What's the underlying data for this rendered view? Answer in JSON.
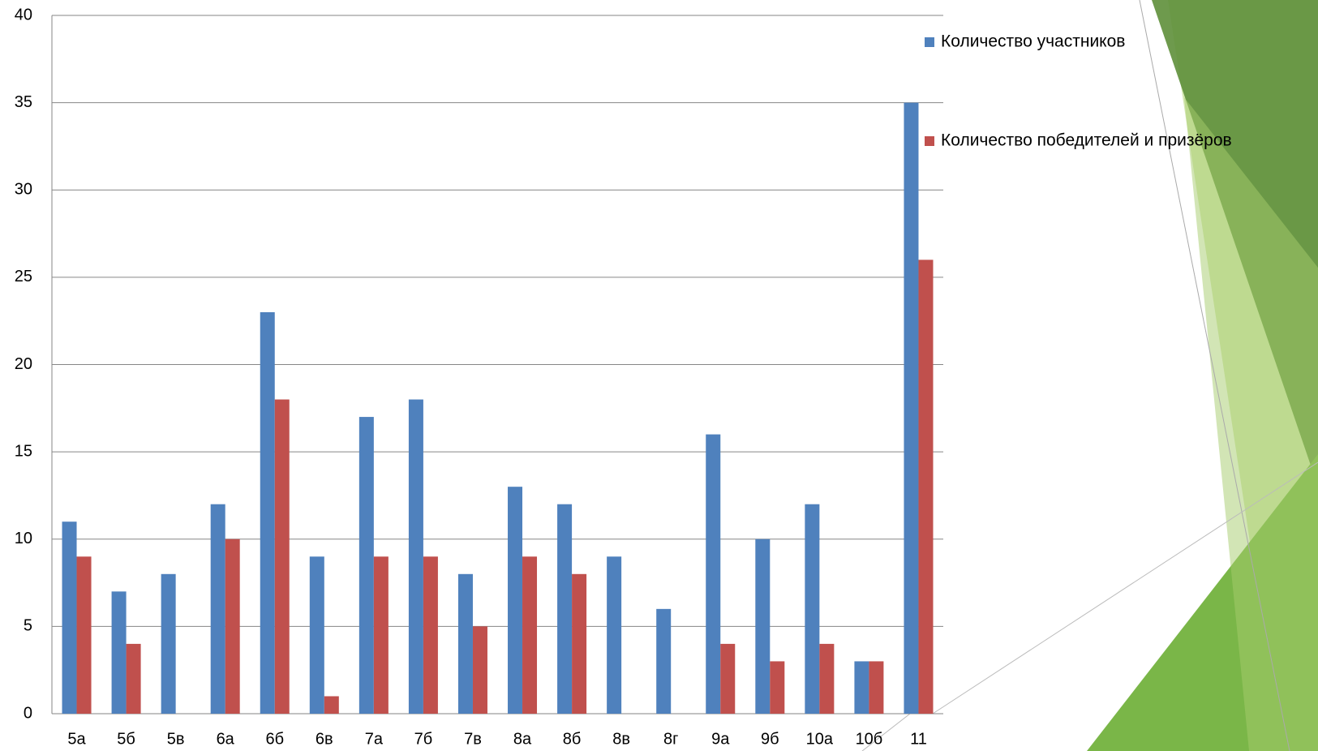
{
  "chart_data": {
    "type": "bar",
    "categories": [
      "5а",
      "5б",
      "5в",
      "6а",
      "6б",
      "6в",
      "7а",
      "7б",
      "7в",
      "8а",
      "8б",
      "8в",
      "8г",
      "9а",
      "9б",
      "10а",
      "10б",
      "11"
    ],
    "series": [
      {
        "name": "Количество участников",
        "color": "#4f81bd",
        "values": [
          11,
          7,
          8,
          12,
          23,
          9,
          17,
          18,
          8,
          13,
          12,
          9,
          6,
          16,
          10,
          12,
          3,
          35
        ]
      },
      {
        "name": "Количество победителей и призёров",
        "color": "#c0504d",
        "values": [
          9,
          4,
          0,
          10,
          18,
          1,
          9,
          9,
          5,
          9,
          8,
          0,
          0,
          4,
          3,
          4,
          3,
          26
        ]
      }
    ],
    "ylim": [
      0,
      40
    ],
    "yticks": [
      0,
      5,
      10,
      15,
      20,
      25,
      30,
      35,
      40
    ],
    "grid": true,
    "legend": "right"
  }
}
